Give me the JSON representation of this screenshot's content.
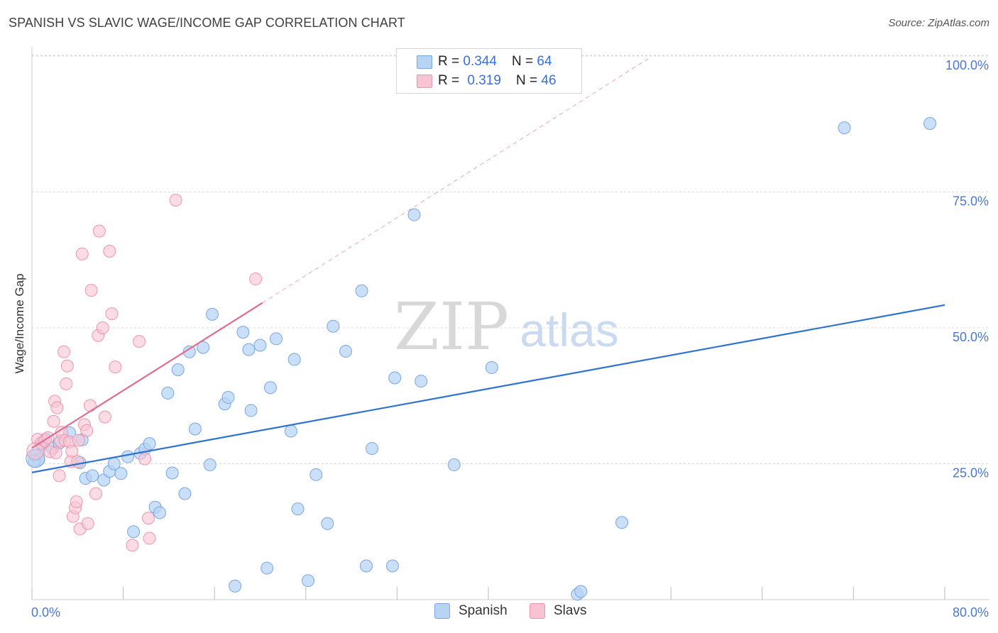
{
  "header": {
    "title": "SPANISH VS SLAVIC WAGE/INCOME GAP CORRELATION CHART",
    "source": "Source: ZipAtlas.com"
  },
  "legend_top": {
    "spanish": {
      "r_label": "R = ",
      "r_value": "0.344",
      "n_label": "N = ",
      "n_value": "64"
    },
    "slavs": {
      "r_label": "R = ",
      "r_value": "0.319",
      "n_label": "N = ",
      "n_value": "46"
    }
  },
  "legend_bottom": {
    "spanish": "Spanish",
    "slavs": "Slavs"
  },
  "watermark": {
    "zip": "ZIP",
    "atlas": "atlas"
  },
  "colors": {
    "spanish_fill": "#b8d4f5",
    "spanish_stroke": "#7aa6e0",
    "spanish_line": "#2f72d0",
    "slavs_fill": "#f8c4d3",
    "slavs_stroke": "#ec95ae",
    "slavs_line": "#e06c94",
    "tick_label": "#4a78d6",
    "grid": "#d9d9d9"
  },
  "chart_data": {
    "type": "scatter",
    "title": "SPANISH VS SLAVIC WAGE/INCOME GAP CORRELATION CHART",
    "xlabel": "",
    "ylabel": "Wage/Income Gap",
    "xlim": [
      0,
      80
    ],
    "ylim": [
      0,
      105
    ],
    "x_tick_labels": [
      "0.0%",
      "80.0%"
    ],
    "y_ticks": [
      25,
      50,
      75,
      100
    ],
    "y_tick_labels": [
      "25.0%",
      "50.0%",
      "75.0%",
      "100.0%"
    ],
    "series": [
      {
        "name": "Spanish",
        "r": 0.344,
        "n": 64,
        "trend": {
          "x": [
            0,
            80
          ],
          "y": [
            23.4,
            54.2
          ]
        },
        "points": [
          [
            0.3,
            26.5
          ],
          [
            0.6,
            25.8
          ],
          [
            0.9,
            28.5
          ],
          [
            1.2,
            29.5
          ],
          [
            1.8,
            27.8
          ],
          [
            2.4,
            28.8
          ],
          [
            3.3,
            30.7
          ],
          [
            4.2,
            25.2
          ],
          [
            4.4,
            29.4
          ],
          [
            4.7,
            22.3
          ],
          [
            5.3,
            22.8
          ],
          [
            6.3,
            22.0
          ],
          [
            6.8,
            23.6
          ],
          [
            7.2,
            25.0
          ],
          [
            7.8,
            23.2
          ],
          [
            8.4,
            26.3
          ],
          [
            8.9,
            12.5
          ],
          [
            9.5,
            26.9
          ],
          [
            9.9,
            27.7
          ],
          [
            10.3,
            28.7
          ],
          [
            10.8,
            17.0
          ],
          [
            11.2,
            16.0
          ],
          [
            11.9,
            38.0
          ],
          [
            12.3,
            23.3
          ],
          [
            12.8,
            42.3
          ],
          [
            13.4,
            19.5
          ],
          [
            13.8,
            45.6
          ],
          [
            14.3,
            31.4
          ],
          [
            15.0,
            46.4
          ],
          [
            15.6,
            24.8
          ],
          [
            15.8,
            52.5
          ],
          [
            16.9,
            36.0
          ],
          [
            17.2,
            37.2
          ],
          [
            17.8,
            2.5
          ],
          [
            18.5,
            49.2
          ],
          [
            19.0,
            46.0
          ],
          [
            19.2,
            34.8
          ],
          [
            20.0,
            46.8
          ],
          [
            20.6,
            5.8
          ],
          [
            20.9,
            39.0
          ],
          [
            21.4,
            48.0
          ],
          [
            22.7,
            31.0
          ],
          [
            23.0,
            44.2
          ],
          [
            23.3,
            16.7
          ],
          [
            24.2,
            3.5
          ],
          [
            24.9,
            23.0
          ],
          [
            25.9,
            14.0
          ],
          [
            26.4,
            50.3
          ],
          [
            27.5,
            45.7
          ],
          [
            28.9,
            56.8
          ],
          [
            29.3,
            6.2
          ],
          [
            29.8,
            27.8
          ],
          [
            31.6,
            6.2
          ],
          [
            31.8,
            40.8
          ],
          [
            33.5,
            70.8
          ],
          [
            34.1,
            40.2
          ],
          [
            37.0,
            24.8
          ],
          [
            40.3,
            42.7
          ],
          [
            47.8,
            1.0
          ],
          [
            48.1,
            1.5
          ],
          [
            51.7,
            14.2
          ],
          [
            71.2,
            86.8
          ],
          [
            78.7,
            87.6
          ],
          [
            0.2,
            25.5
          ]
        ]
      },
      {
        "name": "Slavs",
        "r": 0.319,
        "n": 46,
        "trend": {
          "x": [
            0,
            20.2
          ],
          "y": [
            27.9,
            54.6
          ]
        },
        "trend_extension": {
          "x": [
            20.2,
            54.0
          ],
          "y": [
            54.6,
            99.5
          ]
        },
        "points": [
          [
            0.5,
            29.5
          ],
          [
            0.8,
            28.8
          ],
          [
            1.1,
            29.2
          ],
          [
            1.4,
            29.8
          ],
          [
            1.6,
            27.2
          ],
          [
            1.9,
            32.8
          ],
          [
            2.0,
            36.5
          ],
          [
            2.1,
            27.0
          ],
          [
            2.2,
            35.3
          ],
          [
            2.4,
            22.8
          ],
          [
            2.5,
            29.2
          ],
          [
            2.6,
            30.8
          ],
          [
            2.8,
            45.6
          ],
          [
            2.9,
            29.3
          ],
          [
            3.0,
            39.7
          ],
          [
            3.1,
            43.0
          ],
          [
            3.3,
            29.0
          ],
          [
            3.4,
            25.4
          ],
          [
            3.5,
            27.3
          ],
          [
            3.6,
            15.3
          ],
          [
            3.8,
            16.9
          ],
          [
            3.9,
            18.0
          ],
          [
            4.0,
            25.4
          ],
          [
            4.1,
            29.3
          ],
          [
            4.2,
            13.0
          ],
          [
            4.4,
            63.6
          ],
          [
            4.6,
            32.2
          ],
          [
            4.8,
            31.1
          ],
          [
            4.9,
            14.0
          ],
          [
            5.1,
            35.7
          ],
          [
            5.2,
            56.9
          ],
          [
            5.6,
            19.5
          ],
          [
            5.8,
            48.6
          ],
          [
            5.9,
            67.8
          ],
          [
            6.2,
            50.0
          ],
          [
            6.4,
            33.6
          ],
          [
            6.8,
            64.1
          ],
          [
            7.0,
            52.6
          ],
          [
            7.3,
            42.8
          ],
          [
            8.8,
            10.0
          ],
          [
            9.4,
            47.5
          ],
          [
            9.9,
            25.9
          ],
          [
            10.2,
            15.0
          ],
          [
            10.3,
            11.3
          ],
          [
            12.6,
            73.5
          ],
          [
            19.6,
            59.0
          ]
        ]
      }
    ]
  }
}
